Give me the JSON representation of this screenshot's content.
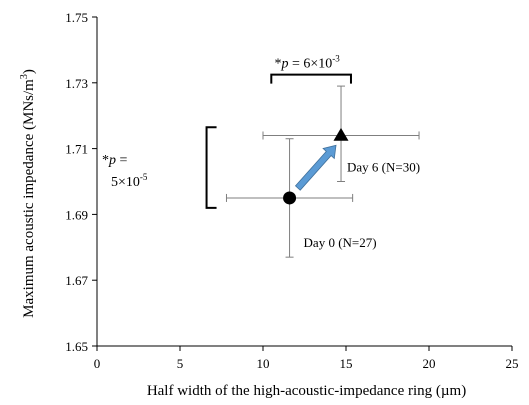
{
  "chart_data": {
    "type": "scatter",
    "xlabel": "Half width of the high-acoustic-impedance ring  (µm)",
    "ylabel_main": "Maximum acoustic impedance  (MNs/m",
    "ylabel_sup": "3",
    "ylabel_close": ")",
    "xlim": [
      0,
      25
    ],
    "ylim": [
      1.65,
      1.75
    ],
    "x_ticks": [
      {
        "value": 0,
        "label": "0"
      },
      {
        "value": 5,
        "label": "5"
      },
      {
        "value": 10,
        "label": "10"
      },
      {
        "value": 15,
        "label": "15"
      },
      {
        "value": 20,
        "label": "20"
      },
      {
        "value": 25,
        "label": "25"
      }
    ],
    "y_ticks": [
      {
        "value": 1.65,
        "label": "1.65"
      },
      {
        "value": 1.67,
        "label": "1.67"
      },
      {
        "value": 1.69,
        "label": "1.69"
      },
      {
        "value": 1.71,
        "label": "1.71"
      },
      {
        "value": 1.73,
        "label": "1.73"
      },
      {
        "value": 1.75,
        "label": "1.75"
      }
    ],
    "grid": false,
    "points": [
      {
        "label": "Day 0 (N=27)",
        "marker": "circle",
        "x": 11.6,
        "y": 1.695,
        "xerr": [
          7.8,
          15.4
        ],
        "yerr": [
          1.677,
          1.713
        ]
      },
      {
        "label": "Day 6 (N=30)",
        "marker": "triangle",
        "x": 14.7,
        "y": 1.714,
        "xerr": [
          10.0,
          19.4
        ],
        "yerr": [
          1.7,
          1.729
        ]
      }
    ],
    "arrow": {
      "from": [
        12.1,
        1.698
      ],
      "to": [
        14.4,
        1.711
      ],
      "color": "#5b9bd5"
    },
    "annotations": {
      "x_sig": {
        "prefix": "*",
        "p": "p",
        "text": " = 6×10",
        "exp": "-3",
        "x_range": [
          10.5,
          15.3
        ],
        "y": 1.7325
      },
      "y_sig": {
        "line1_prefix": "*",
        "line1_p": "p",
        "line1_text": " =",
        "line2_text": "5×10",
        "line2_exp": "-5",
        "y_range": [
          1.692,
          1.7165
        ],
        "x": 6.6
      }
    }
  }
}
